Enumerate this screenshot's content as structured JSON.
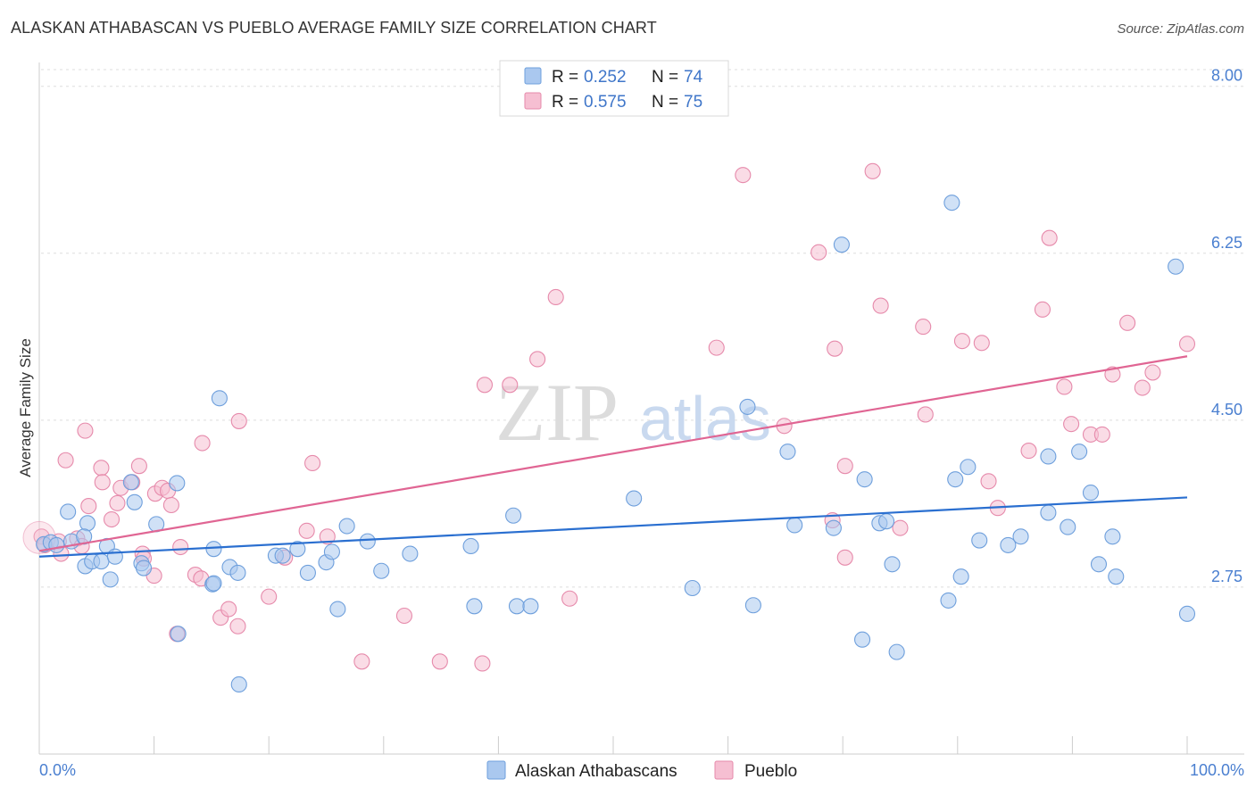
{
  "title": "ALASKAN ATHABASCAN VS PUEBLO AVERAGE FAMILY SIZE CORRELATION CHART",
  "source": "Source: ZipAtlas.com",
  "watermark": {
    "zip": "ZIP",
    "atlas": "atlas"
  },
  "legend": {
    "r_label": "R = ",
    "n_label": "N = ",
    "entries": [
      {
        "r": "0.252",
        "n": "74"
      },
      {
        "r": "0.575",
        "n": "75"
      }
    ]
  },
  "colors": {
    "blue_fill": "#aac8ef",
    "blue_stroke": "#6e9fdc",
    "blue_line": "#2a6fd0",
    "pink_fill": "#f6bfd2",
    "pink_stroke": "#e68aab",
    "pink_line": "#e06593",
    "axis_text": "#4a7fd0",
    "grid": "#dddddd"
  },
  "chart_data": {
    "type": "scatter",
    "title": "ALASKAN ATHABASCAN VS PUEBLO AVERAGE FAMILY SIZE CORRELATION CHART",
    "xlabel": "",
    "ylabel": "Average Family Size",
    "x_tick_labels": [
      "0.0%",
      "100.0%"
    ],
    "y_tick_labels": [
      "2.75",
      "4.50",
      "6.25",
      "8.00"
    ],
    "y_ticks": [
      2.75,
      4.5,
      6.25,
      8.0
    ],
    "xlim": [
      0,
      100
    ],
    "ylim": [
      1.0,
      8.25
    ],
    "grid": "horizontal dashed",
    "legend_position": "top-center",
    "series": [
      {
        "name": "Alaskan Athabascans",
        "color": "#aac8ef",
        "r": 0.252,
        "n": 74,
        "trend": {
          "x": [
            0,
            100
          ],
          "y": [
            3.07,
            3.69
          ]
        },
        "points": [
          [
            0.4,
            3.2
          ],
          [
            1.0,
            3.22
          ],
          [
            1.5,
            3.19
          ],
          [
            2.8,
            3.23
          ],
          [
            2.5,
            3.54
          ],
          [
            4.2,
            3.42
          ],
          [
            3.9,
            3.28
          ],
          [
            4.0,
            2.97
          ],
          [
            4.6,
            3.02
          ],
          [
            5.4,
            3.02
          ],
          [
            5.9,
            3.18
          ],
          [
            6.2,
            2.83
          ],
          [
            6.6,
            3.07
          ],
          [
            8.0,
            3.85
          ],
          [
            8.3,
            3.64
          ],
          [
            8.9,
            3.0
          ],
          [
            9.1,
            2.95
          ],
          [
            10.2,
            3.41
          ],
          [
            12.0,
            3.84
          ],
          [
            12.1,
            2.26
          ],
          [
            15.1,
            2.78
          ],
          [
            15.2,
            2.79
          ],
          [
            15.2,
            3.15
          ],
          [
            15.7,
            4.73
          ],
          [
            16.6,
            2.96
          ],
          [
            17.3,
            2.9
          ],
          [
            17.4,
            1.73
          ],
          [
            20.6,
            3.08
          ],
          [
            21.2,
            3.08
          ],
          [
            22.5,
            3.15
          ],
          [
            23.4,
            2.9
          ],
          [
            25.0,
            3.01
          ],
          [
            25.5,
            3.12
          ],
          [
            26.0,
            2.52
          ],
          [
            26.8,
            3.39
          ],
          [
            28.6,
            3.23
          ],
          [
            29.8,
            2.92
          ],
          [
            32.3,
            3.1
          ],
          [
            37.6,
            3.18
          ],
          [
            37.9,
            2.55
          ],
          [
            41.6,
            2.55
          ],
          [
            42.8,
            2.55
          ],
          [
            41.3,
            3.5
          ],
          [
            51.8,
            3.68
          ],
          [
            56.9,
            2.74
          ],
          [
            61.7,
            4.64
          ],
          [
            62.2,
            2.56
          ],
          [
            65.2,
            4.17
          ],
          [
            65.8,
            3.4
          ],
          [
            69.9,
            6.34
          ],
          [
            69.2,
            3.37
          ],
          [
            71.7,
            2.2
          ],
          [
            71.9,
            3.88
          ],
          [
            73.2,
            3.42
          ],
          [
            73.8,
            3.44
          ],
          [
            74.3,
            2.99
          ],
          [
            74.7,
            2.07
          ],
          [
            79.2,
            2.61
          ],
          [
            79.8,
            3.88
          ],
          [
            80.3,
            2.86
          ],
          [
            80.9,
            4.01
          ],
          [
            79.5,
            6.78
          ],
          [
            81.9,
            3.24
          ],
          [
            84.4,
            3.19
          ],
          [
            85.5,
            3.28
          ],
          [
            87.9,
            4.12
          ],
          [
            87.9,
            3.53
          ],
          [
            89.6,
            3.38
          ],
          [
            90.6,
            4.17
          ],
          [
            91.6,
            3.74
          ],
          [
            92.3,
            2.99
          ],
          [
            93.5,
            3.28
          ],
          [
            93.8,
            2.86
          ],
          [
            99.0,
            6.11
          ],
          [
            100.0,
            2.47
          ]
        ]
      },
      {
        "name": "Pueblo",
        "color": "#f6bfd2",
        "r": 0.575,
        "n": 75,
        "trend": {
          "x": [
            0,
            100
          ],
          "y": [
            3.13,
            5.17
          ]
        },
        "points": [
          [
            0.2,
            3.28
          ],
          [
            0.5,
            3.19
          ],
          [
            1.7,
            3.23
          ],
          [
            1.9,
            3.1
          ],
          [
            2.3,
            4.08
          ],
          [
            3.3,
            3.26
          ],
          [
            3.7,
            3.18
          ],
          [
            4.0,
            4.39
          ],
          [
            4.3,
            3.6
          ],
          [
            5.4,
            4.0
          ],
          [
            5.5,
            3.85
          ],
          [
            6.3,
            3.46
          ],
          [
            6.8,
            3.63
          ],
          [
            7.1,
            3.79
          ],
          [
            8.1,
            3.85
          ],
          [
            8.7,
            4.02
          ],
          [
            9.0,
            3.1
          ],
          [
            9.1,
            3.05
          ],
          [
            10.0,
            2.87
          ],
          [
            10.1,
            3.73
          ],
          [
            10.7,
            3.79
          ],
          [
            11.2,
            3.76
          ],
          [
            11.5,
            3.61
          ],
          [
            12.0,
            2.26
          ],
          [
            12.3,
            3.17
          ],
          [
            13.6,
            2.88
          ],
          [
            14.1,
            2.84
          ],
          [
            14.2,
            4.26
          ],
          [
            15.8,
            2.43
          ],
          [
            16.5,
            2.52
          ],
          [
            17.3,
            2.34
          ],
          [
            17.4,
            4.49
          ],
          [
            20.0,
            2.65
          ],
          [
            21.4,
            3.06
          ],
          [
            23.3,
            3.34
          ],
          [
            23.8,
            4.05
          ],
          [
            25.1,
            3.28
          ],
          [
            28.1,
            1.97
          ],
          [
            31.8,
            2.45
          ],
          [
            34.9,
            1.97
          ],
          [
            38.6,
            1.95
          ],
          [
            38.8,
            4.87
          ],
          [
            41.0,
            4.87
          ],
          [
            43.4,
            5.14
          ],
          [
            45.0,
            5.79
          ],
          [
            46.2,
            2.63
          ],
          [
            59.0,
            5.26
          ],
          [
            61.3,
            7.07
          ],
          [
            64.9,
            4.44
          ],
          [
            67.9,
            6.26
          ],
          [
            69.3,
            5.25
          ],
          [
            69.1,
            3.45
          ],
          [
            70.2,
            3.06
          ],
          [
            70.2,
            4.02
          ],
          [
            72.6,
            7.11
          ],
          [
            73.3,
            5.7
          ],
          [
            75.0,
            3.37
          ],
          [
            77.0,
            5.48
          ],
          [
            77.2,
            4.56
          ],
          [
            80.4,
            5.33
          ],
          [
            82.1,
            5.31
          ],
          [
            82.7,
            3.86
          ],
          [
            83.5,
            3.58
          ],
          [
            86.2,
            4.18
          ],
          [
            87.4,
            5.66
          ],
          [
            88.0,
            6.41
          ],
          [
            89.3,
            4.85
          ],
          [
            89.9,
            4.46
          ],
          [
            91.6,
            4.35
          ],
          [
            92.6,
            4.35
          ],
          [
            93.5,
            4.98
          ],
          [
            94.8,
            5.52
          ],
          [
            96.1,
            4.84
          ],
          [
            97.0,
            5.0
          ],
          [
            100.0,
            5.3
          ]
        ]
      }
    ]
  }
}
